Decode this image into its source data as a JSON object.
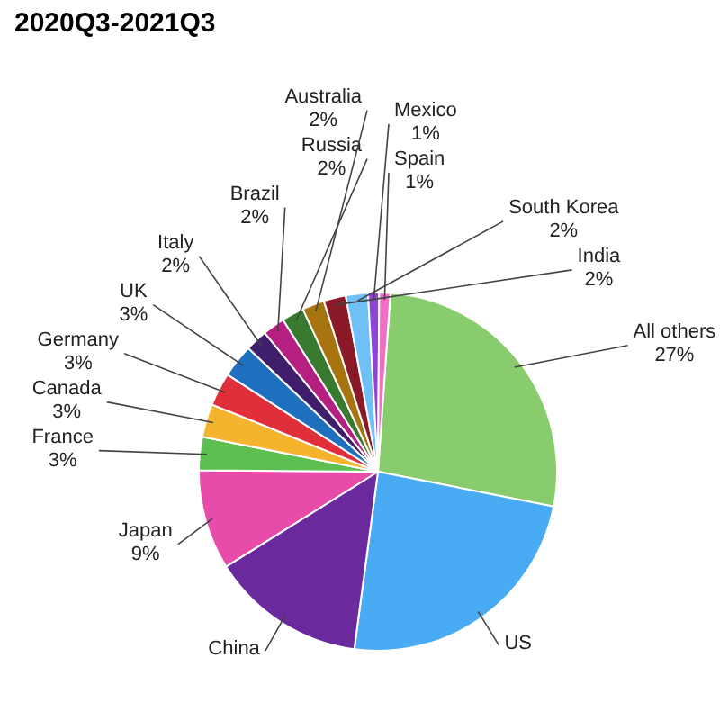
{
  "chart_data": {
    "type": "pie",
    "title": "2020Q3-2021Q3",
    "categories": [
      "All others",
      "US",
      "China",
      "Japan",
      "France",
      "Canada",
      "Germany",
      "UK",
      "Italy",
      "Brazil",
      "Russia",
      "Australia",
      "India",
      "South Korea",
      "Mexico",
      "Spain"
    ],
    "values": [
      27,
      24,
      14,
      9,
      3,
      3,
      3,
      3,
      2,
      2,
      2,
      2,
      2,
      2,
      1,
      1
    ],
    "value_labels": [
      "27%",
      null,
      null,
      "9%",
      "3%",
      "3%",
      "3%",
      "3%",
      "2%",
      "2%",
      "2%",
      "2%",
      "2%",
      "2%",
      "1%",
      "1%"
    ],
    "colors": [
      "#88cc6e",
      "#4aabf5",
      "#6a2a9e",
      "#e84cab",
      "#5cbf4f",
      "#f5b42e",
      "#e02e3b",
      "#1f6fbf",
      "#3f1f6b",
      "#b51f7f",
      "#3a7a30",
      "#a8740f",
      "#8a1a28",
      "#6ec0f7",
      "#8e44d6",
      "#ef70c4"
    ],
    "legend": false
  }
}
